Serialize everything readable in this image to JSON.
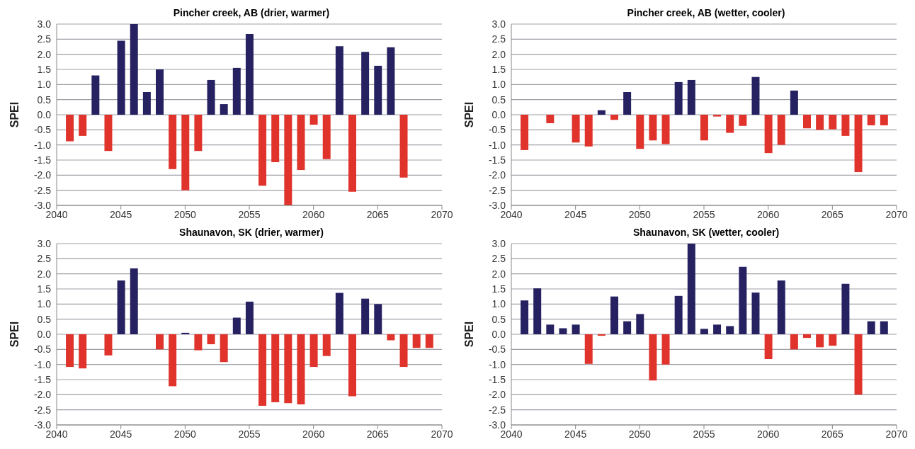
{
  "chart_data": [
    {
      "type": "bar",
      "title": "Pincher creek, AB (drier, warmer)",
      "ylabel": "SPEI",
      "grid": "y",
      "x": [
        2041,
        2042,
        2043,
        2044,
        2045,
        2046,
        2047,
        2048,
        2049,
        2050,
        2051,
        2052,
        2053,
        2054,
        2055,
        2056,
        2057,
        2058,
        2059,
        2060,
        2061,
        2062,
        2063,
        2064,
        2065,
        2066,
        2067,
        2068,
        2069
      ],
      "values": [
        -0.88,
        -0.7,
        1.3,
        -1.2,
        2.45,
        3.0,
        0.75,
        1.5,
        -1.8,
        -2.5,
        -1.2,
        1.15,
        0.35,
        1.55,
        2.67,
        -2.35,
        -1.57,
        -3.0,
        -1.83,
        -0.33,
        -1.47,
        2.27,
        -2.55,
        2.08,
        1.62,
        2.23,
        -2.08,
        0.0,
        0.0
      ],
      "colors": [
        "#e0332c",
        "#e0332c",
        "#262262",
        "#e0332c",
        "#262262",
        "#262262",
        "#262262",
        "#262262",
        "#e0332c",
        "#e0332c",
        "#e0332c",
        "#262262",
        "#262262",
        "#262262",
        "#262262",
        "#e0332c",
        "#e0332c",
        "#e0332c",
        "#e0332c",
        "#e0332c",
        "#e0332c",
        "#262262",
        "#e0332c",
        "#262262",
        "#262262",
        "#262262",
        "#e0332c",
        "#e0332c",
        "#e0332c"
      ],
      "xlim": [
        2040,
        2070
      ],
      "xticks": [
        2040,
        2045,
        2050,
        2055,
        2060,
        2065,
        2070
      ],
      "ylim": [
        -3,
        3
      ],
      "yticks": [
        {
          "value": -3,
          "label": "-3.0"
        },
        {
          "value": -2.5,
          "label": "-2.5"
        },
        {
          "value": -2,
          "label": "-2.0"
        },
        {
          "value": -1.5,
          "label": "-1.5"
        },
        {
          "value": -1,
          "label": "-1.0"
        },
        {
          "value": -0.5,
          "label": "-0.5"
        },
        {
          "value": 0,
          "label": "0.0"
        },
        {
          "value": 0.5,
          "label": "0.5"
        },
        {
          "value": 1,
          "label": "1.0"
        },
        {
          "value": 1.5,
          "label": "1.5"
        },
        {
          "value": 2,
          "label": "2.0"
        },
        {
          "value": 2.5,
          "label": "2.5"
        },
        {
          "value": 3,
          "label": "3.0"
        }
      ]
    },
    {
      "type": "bar",
      "title": "Pincher creek, AB (wetter, cooler)",
      "ylabel": "SPEI",
      "grid": "y",
      "x": [
        2041,
        2042,
        2043,
        2044,
        2045,
        2046,
        2047,
        2048,
        2049,
        2050,
        2051,
        2052,
        2053,
        2054,
        2055,
        2056,
        2057,
        2058,
        2059,
        2060,
        2061,
        2062,
        2063,
        2064,
        2065,
        2066,
        2067,
        2068,
        2069
      ],
      "values": [
        -1.17,
        null,
        -0.28,
        0.0,
        -0.92,
        -1.05,
        0.15,
        -0.17,
        0.75,
        -1.13,
        -0.85,
        -0.97,
        1.08,
        1.15,
        -0.85,
        -0.06,
        -0.6,
        -0.37,
        1.25,
        -1.27,
        -1.0,
        0.8,
        -0.45,
        -0.5,
        -0.48,
        -0.7,
        -1.9,
        -0.35,
        -0.35
      ],
      "colors": [
        "#e0332c",
        "#e0332c",
        "#e0332c",
        "#e0332c",
        "#e0332c",
        "#e0332c",
        "#262262",
        "#e0332c",
        "#262262",
        "#e0332c",
        "#e0332c",
        "#e0332c",
        "#262262",
        "#262262",
        "#e0332c",
        "#e0332c",
        "#e0332c",
        "#e0332c",
        "#262262",
        "#e0332c",
        "#e0332c",
        "#262262",
        "#e0332c",
        "#e0332c",
        "#e0332c",
        "#e0332c",
        "#e0332c",
        "#e0332c",
        "#e0332c"
      ],
      "xlim": [
        2040,
        2070
      ],
      "xticks": [
        2040,
        2045,
        2050,
        2055,
        2060,
        2065,
        2070
      ],
      "ylim": [
        -3,
        3
      ],
      "yticks": [
        {
          "value": -3,
          "label": "-3.0"
        },
        {
          "value": -2.5,
          "label": "-2.5"
        },
        {
          "value": -2,
          "label": "-2.0"
        },
        {
          "value": -1.5,
          "label": "-1.5"
        },
        {
          "value": -1,
          "label": "-1.0"
        },
        {
          "value": -0.5,
          "label": "-0.5"
        },
        {
          "value": 0,
          "label": "0.0"
        },
        {
          "value": 0.5,
          "label": "0.5"
        },
        {
          "value": 1,
          "label": "1.0"
        },
        {
          "value": 1.5,
          "label": "1.5"
        },
        {
          "value": 2,
          "label": "2.0"
        },
        {
          "value": 2.5,
          "label": "2.5"
        },
        {
          "value": 3,
          "label": "3.0"
        }
      ]
    },
    {
      "type": "bar",
      "title": "Shaunavon, SK (drier, warmer)",
      "ylabel": "SPEI",
      "grid": "y",
      "x": [
        2041,
        2042,
        2043,
        2044,
        2045,
        2046,
        2047,
        2048,
        2049,
        2050,
        2051,
        2052,
        2053,
        2054,
        2055,
        2056,
        2057,
        2058,
        2059,
        2060,
        2061,
        2062,
        2063,
        2064,
        2065,
        2066,
        2067,
        2068,
        2069
      ],
      "values": [
        -1.08,
        -1.13,
        null,
        -0.7,
        1.78,
        2.18,
        0.0,
        -0.5,
        -1.72,
        0.05,
        -0.53,
        -0.33,
        -0.92,
        0.55,
        1.08,
        -2.37,
        -2.25,
        -2.28,
        -2.32,
        -1.08,
        -0.72,
        1.37,
        -2.05,
        1.18,
        1.0,
        -0.2,
        -1.08,
        -0.45,
        -0.45
      ],
      "colors": [
        "#e0332c",
        "#e0332c",
        "#e0332c",
        "#e0332c",
        "#262262",
        "#262262",
        "#e0332c",
        "#e0332c",
        "#e0332c",
        "#262262",
        "#e0332c",
        "#e0332c",
        "#e0332c",
        "#262262",
        "#262262",
        "#e0332c",
        "#e0332c",
        "#e0332c",
        "#e0332c",
        "#e0332c",
        "#e0332c",
        "#262262",
        "#e0332c",
        "#262262",
        "#262262",
        "#e0332c",
        "#e0332c",
        "#e0332c",
        "#e0332c"
      ],
      "xlim": [
        2040,
        2070
      ],
      "xticks": [
        2040,
        2045,
        2050,
        2055,
        2060,
        2065,
        2070
      ],
      "ylim": [
        -3,
        3
      ],
      "yticks": [
        {
          "value": -3,
          "label": "-3.0"
        },
        {
          "value": -2.5,
          "label": "-2.5"
        },
        {
          "value": -2,
          "label": "-2.0"
        },
        {
          "value": -1.5,
          "label": "-1.5"
        },
        {
          "value": -1,
          "label": "-1.0"
        },
        {
          "value": -0.5,
          "label": "-0.5"
        },
        {
          "value": 0,
          "label": "0.0"
        },
        {
          "value": 0.5,
          "label": "0.5"
        },
        {
          "value": 1,
          "label": "1.0"
        },
        {
          "value": 1.5,
          "label": "1.5"
        },
        {
          "value": 2,
          "label": "2.0"
        },
        {
          "value": 2.5,
          "label": "2.5"
        },
        {
          "value": 3,
          "label": "3.0"
        }
      ]
    },
    {
      "type": "bar",
      "title": "Shaunavon, SK (wetter, cooler)",
      "ylabel": "SPEI",
      "grid": "y",
      "x": [
        2041,
        2042,
        2043,
        2044,
        2045,
        2046,
        2047,
        2048,
        2049,
        2050,
        2051,
        2052,
        2053,
        2054,
        2055,
        2056,
        2057,
        2058,
        2059,
        2060,
        2061,
        2062,
        2063,
        2064,
        2065,
        2066,
        2067,
        2068,
        2069
      ],
      "values": [
        1.12,
        1.52,
        0.32,
        0.2,
        0.32,
        -0.98,
        -0.05,
        1.25,
        0.43,
        0.67,
        -1.53,
        -1.0,
        1.27,
        3.0,
        0.18,
        0.32,
        0.27,
        2.23,
        1.38,
        -0.82,
        1.78,
        -0.5,
        -0.12,
        -0.43,
        -0.38,
        1.67,
        -2.0,
        0.43,
        0.43
      ],
      "colors": [
        "#262262",
        "#262262",
        "#262262",
        "#262262",
        "#262262",
        "#e0332c",
        "#e0332c",
        "#262262",
        "#262262",
        "#262262",
        "#e0332c",
        "#e0332c",
        "#262262",
        "#262262",
        "#262262",
        "#262262",
        "#262262",
        "#262262",
        "#262262",
        "#e0332c",
        "#262262",
        "#e0332c",
        "#e0332c",
        "#e0332c",
        "#e0332c",
        "#262262",
        "#e0332c",
        "#262262",
        "#262262"
      ],
      "xlim": [
        2040,
        2070
      ],
      "xticks": [
        2040,
        2045,
        2050,
        2055,
        2060,
        2065,
        2070
      ],
      "ylim": [
        -3,
        3
      ],
      "yticks": [
        {
          "value": -3,
          "label": "-3.0"
        },
        {
          "value": -2.5,
          "label": "-2.5"
        },
        {
          "value": -2,
          "label": "-2.0"
        },
        {
          "value": -1.5,
          "label": "-1.5"
        },
        {
          "value": -1,
          "label": "-1.0"
        },
        {
          "value": -0.5,
          "label": "-0.5"
        },
        {
          "value": 0,
          "label": "0.0"
        },
        {
          "value": 0.5,
          "label": "0.5"
        },
        {
          "value": 1,
          "label": "1.0"
        },
        {
          "value": 1.5,
          "label": "1.5"
        },
        {
          "value": 2,
          "label": "2.0"
        },
        {
          "value": 2.5,
          "label": "2.5"
        },
        {
          "value": 3,
          "label": "3.0"
        }
      ]
    }
  ]
}
